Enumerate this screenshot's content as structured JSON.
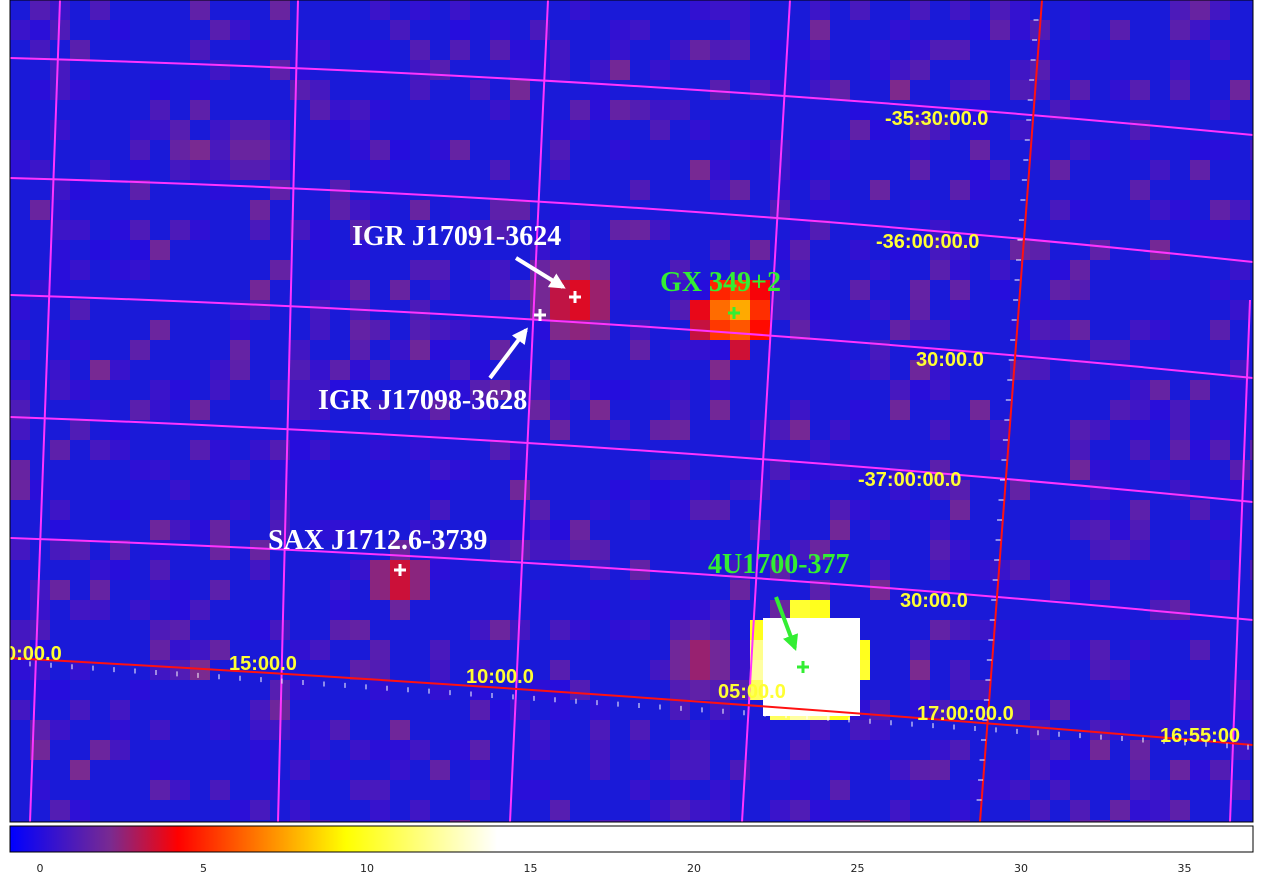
{
  "sources": [
    {
      "id": "igr-j17091",
      "label": "IGR J17091-3624",
      "color": "#ffffff"
    },
    {
      "id": "igr-j17098",
      "label": "IGR J17098-3628",
      "color": "#ffffff"
    },
    {
      "id": "gx-349",
      "label": "GX 349+2",
      "color": "#33ee33"
    },
    {
      "id": "sax-j1712",
      "label": "SAX J1712.6-3739",
      "color": "#ffffff"
    },
    {
      "id": "4u1700",
      "label": "4U1700-377",
      "color": "#33ee33"
    }
  ],
  "dec_labels": [
    "-35:30:00.0",
    "-36:00:00.0",
    "30:00.0",
    "-37:00:00.0",
    "30:00.0"
  ],
  "ra_labels": [
    "0:00.0",
    "15:00.0",
    "10:00.0",
    "05:00.0",
    "17:00:00.0",
    "16:55:00"
  ],
  "colorbar": {
    "ticks": [
      "0",
      "5",
      "10",
      "15",
      "20",
      "25",
      "30",
      "35"
    ],
    "min": 0,
    "max": 37,
    "stops": [
      {
        "v": 0,
        "c": "#0000ff"
      },
      {
        "v": 3,
        "c": "#7a2a90"
      },
      {
        "v": 5,
        "c": "#ff0000"
      },
      {
        "v": 10,
        "c": "#ffff00"
      },
      {
        "v": 14.5,
        "c": "#ffffff"
      },
      {
        "v": 37,
        "c": "#ffffff"
      }
    ]
  },
  "colors": {
    "grid": "#ff33ff",
    "ra_line": "#ff1111",
    "coord_text": "#ffff33"
  }
}
